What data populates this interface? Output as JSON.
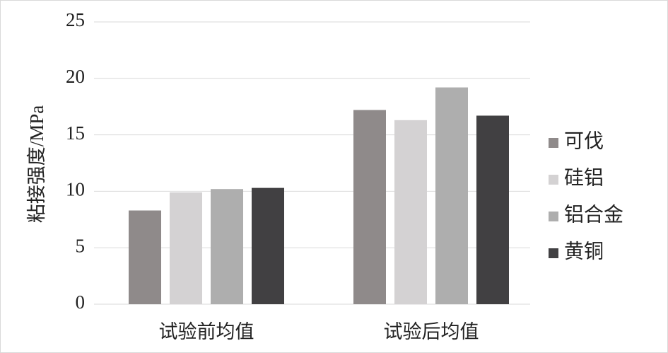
{
  "chart_data": {
    "type": "bar",
    "y_label": "粘接强度/MPa",
    "categories": [
      "试验前均值",
      "试验后均值"
    ],
    "series": [
      {
        "name": "可伐",
        "color": "#8f8a8a",
        "values": [
          8.3,
          17.2
        ]
      },
      {
        "name": "硅铝",
        "color": "#d4d2d3",
        "values": [
          9.9,
          16.3
        ]
      },
      {
        "name": "铝合金",
        "color": "#aeaeae",
        "values": [
          10.2,
          19.2
        ]
      },
      {
        "name": "黄铜",
        "color": "#414042",
        "values": [
          10.3,
          16.7
        ]
      }
    ],
    "ylim": [
      0,
      25
    ],
    "yticks": [
      0,
      5,
      10,
      15,
      20,
      25
    ],
    "grid": true,
    "legend": "right"
  }
}
